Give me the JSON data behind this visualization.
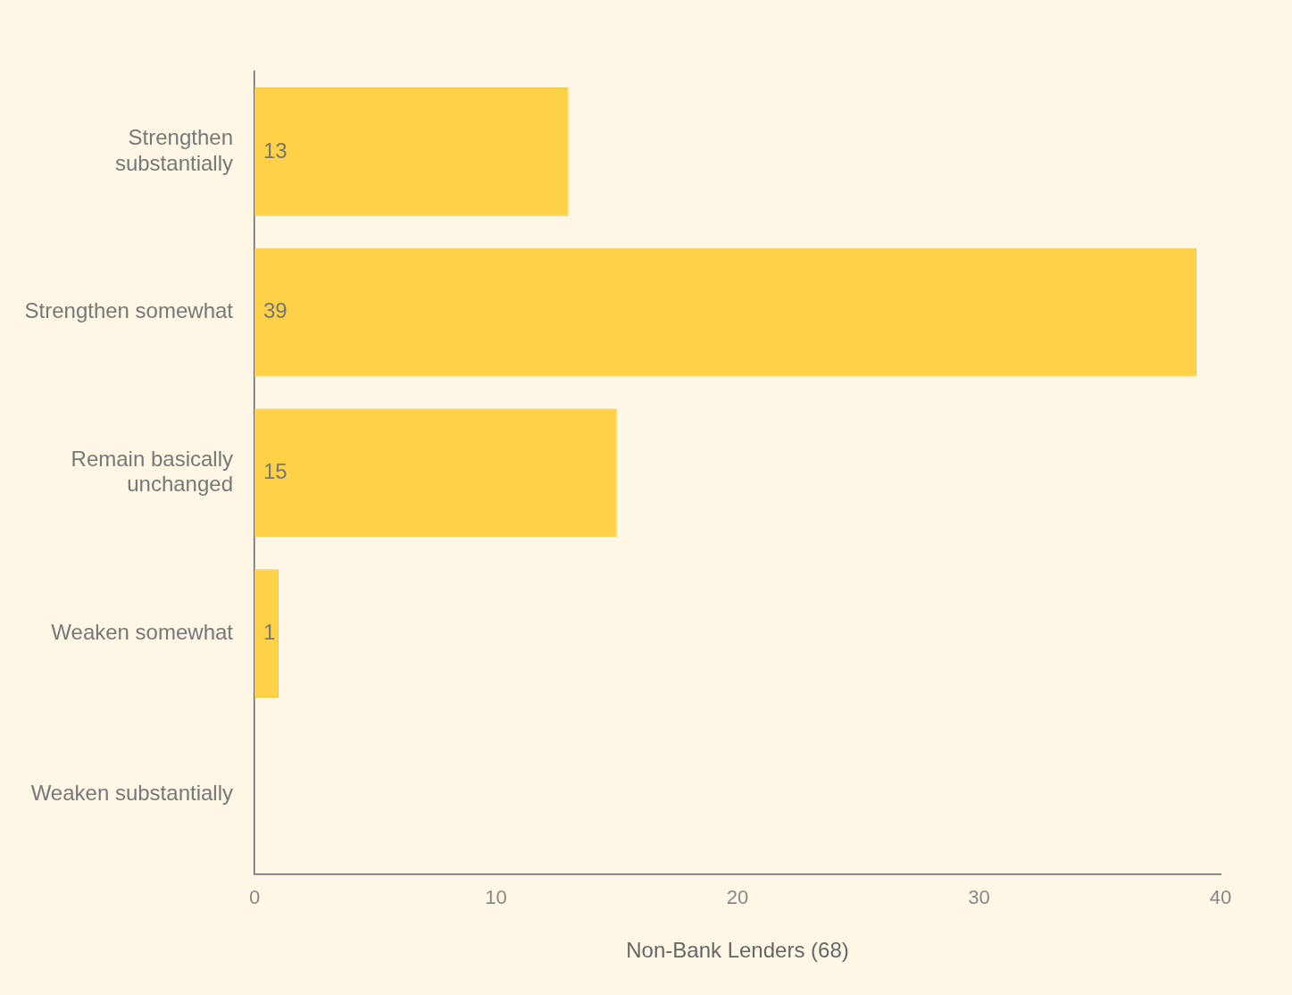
{
  "chart_data": {
    "type": "bar",
    "orientation": "horizontal",
    "categories": [
      "Strengthen substantially",
      "Strengthen somewhat",
      "Remain basically unchanged",
      "Weaken somewhat",
      "Weaken substantially"
    ],
    "values": [
      13,
      39,
      15,
      1,
      0
    ],
    "value_labels": [
      "13",
      "39",
      "15",
      "1",
      null
    ],
    "color": "#ffd147",
    "xlabel": "Non-Bank Lenders (68)",
    "xlim": [
      0,
      40
    ],
    "xticks": [
      0,
      10,
      20,
      30,
      40
    ],
    "grid": false,
    "legend": false
  }
}
